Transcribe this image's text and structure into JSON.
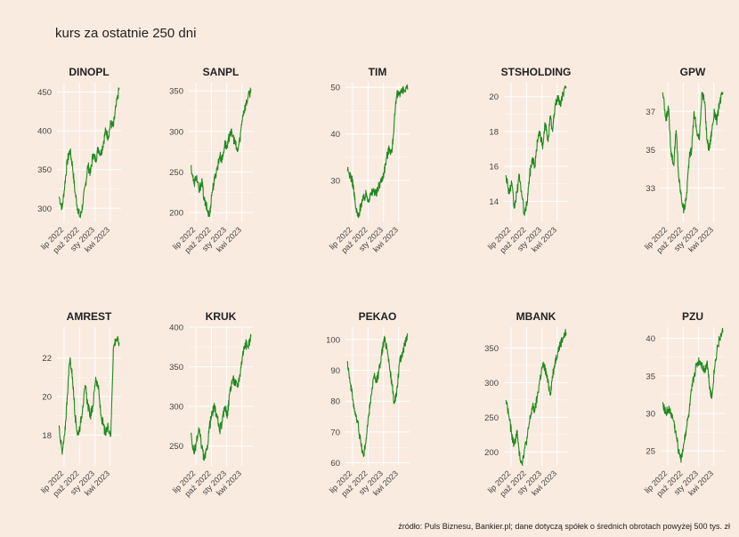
{
  "title": "kurs za ostatnie 250 dni",
  "caption": "źródło: Puls Biznesu, Bankier.pl; dane dotyczą spółek o średnich obrotach powyżej 500 tys. zł",
  "line_color": "#1f8a1f",
  "background_color": "#faebe0",
  "x_tick_labels": [
    "lip 2022",
    "paź 2022",
    "sty 2023",
    "kwi 2023"
  ],
  "chart_data": [
    {
      "type": "line",
      "title": "DINOPL",
      "y_ticks": [
        300,
        350,
        400,
        450
      ],
      "ylim": [
        282,
        462
      ],
      "x": [
        "2022-06-01",
        "2022-06-20",
        "2022-07-05",
        "2022-07-20",
        "2022-08-05",
        "2022-08-20",
        "2022-09-05",
        "2022-09-20",
        "2022-10-05",
        "2022-10-20",
        "2022-11-05",
        "2022-11-20",
        "2022-12-05",
        "2022-12-20",
        "2023-01-05",
        "2023-01-20",
        "2023-02-05",
        "2023-02-20",
        "2023-03-05",
        "2023-03-20",
        "2023-04-05",
        "2023-04-20",
        "2023-05-05",
        "2023-05-25"
      ],
      "y": [
        315,
        300,
        330,
        360,
        375,
        355,
        320,
        300,
        288,
        305,
        330,
        355,
        345,
        370,
        362,
        378,
        370,
        385,
        400,
        392,
        410,
        405,
        430,
        455
      ]
    },
    {
      "type": "line",
      "title": "SANPL",
      "y_ticks": [
        200,
        250,
        300,
        350
      ],
      "ylim": [
        188,
        360
      ],
      "x": [
        "2022-06-01",
        "2022-06-20",
        "2022-07-05",
        "2022-07-20",
        "2022-08-05",
        "2022-08-20",
        "2022-09-05",
        "2022-09-20",
        "2022-10-05",
        "2022-10-20",
        "2022-11-05",
        "2022-11-20",
        "2022-12-05",
        "2022-12-20",
        "2023-01-05",
        "2023-01-20",
        "2023-02-05",
        "2023-02-20",
        "2023-03-05",
        "2023-03-20",
        "2023-04-05",
        "2023-04-20",
        "2023-05-05",
        "2023-05-25"
      ],
      "y": [
        258,
        235,
        245,
        225,
        240,
        215,
        205,
        195,
        225,
        240,
        255,
        270,
        265,
        285,
        280,
        300,
        295,
        285,
        275,
        290,
        320,
        330,
        340,
        352
      ]
    },
    {
      "type": "line",
      "title": "TIM",
      "y_ticks": [
        30,
        40,
        50
      ],
      "ylim": [
        21,
        51
      ],
      "x": [
        "2022-06-01",
        "2022-06-20",
        "2022-07-05",
        "2022-07-20",
        "2022-08-05",
        "2022-08-20",
        "2022-09-05",
        "2022-09-20",
        "2022-10-05",
        "2022-10-20",
        "2022-11-05",
        "2022-11-20",
        "2022-12-05",
        "2022-12-20",
        "2023-01-05",
        "2023-01-20",
        "2023-02-05",
        "2023-02-20",
        "2023-03-05",
        "2023-03-20",
        "2023-04-05",
        "2023-04-20",
        "2023-05-05",
        "2023-05-25"
      ],
      "y": [
        32,
        31,
        29,
        24,
        22,
        25,
        26,
        27,
        26,
        27,
        28,
        27,
        29,
        30,
        32,
        35,
        37,
        36,
        42,
        48,
        49,
        49,
        49.3,
        49.5
      ]
    },
    {
      "type": "line",
      "title": "STSHOLDING",
      "y_ticks": [
        14,
        16,
        18,
        20
      ],
      "ylim": [
        12.8,
        20.8
      ],
      "x": [
        "2022-06-01",
        "2022-06-20",
        "2022-07-05",
        "2022-07-20",
        "2022-08-05",
        "2022-08-20",
        "2022-09-05",
        "2022-09-20",
        "2022-10-05",
        "2022-10-20",
        "2022-11-05",
        "2022-11-20",
        "2022-12-05",
        "2022-12-20",
        "2023-01-05",
        "2023-01-20",
        "2023-02-05",
        "2023-02-20",
        "2023-03-05",
        "2023-03-20",
        "2023-04-05",
        "2023-04-20",
        "2023-05-05",
        "2023-05-25"
      ],
      "y": [
        15.5,
        14.5,
        15.0,
        13.6,
        14.5,
        15.5,
        14.2,
        13.2,
        14.0,
        15.5,
        16.5,
        16.0,
        17.5,
        18.0,
        17.0,
        18.5,
        17.5,
        18.8,
        18.0,
        19.5,
        20.0,
        19.5,
        20.2,
        20.5
      ]
    },
    {
      "type": "line",
      "title": "GPW",
      "y_ticks": [
        33,
        35,
        37
      ],
      "ylim": [
        31.2,
        38.5
      ],
      "x": [
        "2022-06-01",
        "2022-06-20",
        "2022-07-05",
        "2022-07-20",
        "2022-08-05",
        "2022-08-20",
        "2022-09-05",
        "2022-09-20",
        "2022-10-05",
        "2022-10-20",
        "2022-11-05",
        "2022-11-20",
        "2022-12-05",
        "2022-12-20",
        "2023-01-05",
        "2023-01-20",
        "2023-02-05",
        "2023-02-20",
        "2023-03-05",
        "2023-03-20",
        "2023-04-05",
        "2023-04-20",
        "2023-05-05",
        "2023-05-25"
      ],
      "y": [
        38.0,
        36.5,
        37.2,
        35.0,
        34.2,
        36.0,
        33.5,
        32.5,
        31.8,
        32.5,
        34.5,
        35.0,
        37.0,
        36.0,
        35.5,
        38.0,
        37.5,
        35.5,
        35.0,
        36.0,
        37.0,
        36.5,
        37.5,
        38.0
      ]
    },
    {
      "type": "line",
      "title": "AMREST",
      "y_ticks": [
        18,
        20,
        22
      ],
      "ylim": [
        16.4,
        23.6
      ],
      "x": [
        "2022-06-01",
        "2022-06-20",
        "2022-07-05",
        "2022-07-20",
        "2022-08-05",
        "2022-08-20",
        "2022-09-05",
        "2022-09-20",
        "2022-10-05",
        "2022-10-20",
        "2022-11-05",
        "2022-11-20",
        "2022-12-05",
        "2022-12-20",
        "2023-01-05",
        "2023-01-20",
        "2023-02-05",
        "2023-02-20",
        "2023-03-05",
        "2023-03-20",
        "2023-04-05",
        "2023-04-20",
        "2023-05-05",
        "2023-05-25"
      ],
      "y": [
        18.5,
        17.0,
        18.0,
        20.0,
        22.0,
        21.0,
        19.0,
        18.0,
        18.5,
        19.5,
        20.5,
        19.5,
        19.0,
        19.5,
        21.0,
        20.5,
        19.0,
        18.5,
        18.0,
        18.5,
        18.0,
        22.5,
        23.0,
        22.8
      ]
    },
    {
      "type": "line",
      "title": "KRUK",
      "y_ticks": [
        250,
        300,
        350,
        400
      ],
      "ylim": [
        225,
        400
      ],
      "x": [
        "2022-06-01",
        "2022-06-20",
        "2022-07-05",
        "2022-07-20",
        "2022-08-05",
        "2022-08-20",
        "2022-09-05",
        "2022-09-20",
        "2022-10-05",
        "2022-10-20",
        "2022-11-05",
        "2022-11-20",
        "2022-12-05",
        "2022-12-20",
        "2023-01-05",
        "2023-01-20",
        "2023-02-05",
        "2023-02-20",
        "2023-03-05",
        "2023-03-20",
        "2023-04-05",
        "2023-04-20",
        "2023-05-05",
        "2023-05-25"
      ],
      "y": [
        265,
        240,
        255,
        270,
        250,
        232,
        245,
        275,
        290,
        300,
        285,
        270,
        280,
        300,
        290,
        320,
        335,
        330,
        325,
        340,
        365,
        380,
        375,
        388
      ]
    },
    {
      "type": "line",
      "title": "PEKAO",
      "y_ticks": [
        60,
        70,
        80,
        90,
        100
      ],
      "ylim": [
        59,
        104
      ],
      "x": [
        "2022-06-01",
        "2022-06-20",
        "2022-07-05",
        "2022-07-20",
        "2022-08-05",
        "2022-08-20",
        "2022-09-05",
        "2022-09-20",
        "2022-10-05",
        "2022-10-20",
        "2022-11-05",
        "2022-11-20",
        "2022-12-05",
        "2022-12-20",
        "2023-01-05",
        "2023-01-20",
        "2023-02-05",
        "2023-02-20",
        "2023-03-05",
        "2023-03-20",
        "2023-04-05",
        "2023-04-20",
        "2023-05-05",
        "2023-05-25"
      ],
      "y": [
        93,
        85,
        80,
        75,
        72,
        66,
        62,
        68,
        75,
        82,
        88,
        86,
        90,
        95,
        100,
        98,
        92,
        85,
        80,
        82,
        92,
        95,
        98,
        102
      ]
    },
    {
      "type": "line",
      "title": "MBANK",
      "y_ticks": [
        200,
        250,
        300,
        350
      ],
      "ylim": [
        180,
        380
      ],
      "x": [
        "2022-06-01",
        "2022-06-20",
        "2022-07-05",
        "2022-07-20",
        "2022-08-05",
        "2022-08-20",
        "2022-09-05",
        "2022-09-20",
        "2022-10-05",
        "2022-10-20",
        "2022-11-05",
        "2022-11-20",
        "2022-12-05",
        "2022-12-20",
        "2023-01-05",
        "2023-01-20",
        "2023-02-05",
        "2023-02-20",
        "2023-03-05",
        "2023-03-20",
        "2023-04-05",
        "2023-04-20",
        "2023-05-05",
        "2023-05-25"
      ],
      "y": [
        275,
        250,
        225,
        210,
        230,
        195,
        185,
        205,
        220,
        245,
        265,
        260,
        280,
        305,
        325,
        320,
        300,
        285,
        310,
        330,
        345,
        355,
        365,
        372
      ]
    },
    {
      "type": "line",
      "title": "PZU",
      "y_ticks": [
        25,
        30,
        35,
        40
      ],
      "ylim": [
        23,
        41.5
      ],
      "x": [
        "2022-06-01",
        "2022-06-20",
        "2022-07-05",
        "2022-07-20",
        "2022-08-05",
        "2022-08-20",
        "2022-09-05",
        "2022-09-20",
        "2022-10-05",
        "2022-10-20",
        "2022-11-05",
        "2022-11-20",
        "2022-12-05",
        "2022-12-20",
        "2023-01-05",
        "2023-01-20",
        "2023-02-05",
        "2023-02-20",
        "2023-03-05",
        "2023-03-20",
        "2023-04-05",
        "2023-04-20",
        "2023-05-05",
        "2023-05-25"
      ],
      "y": [
        31.5,
        30.0,
        30.5,
        30.0,
        29.0,
        27.0,
        25.0,
        24.0,
        26.0,
        28.0,
        30.0,
        33.0,
        35.0,
        36.5,
        37.0,
        36.5,
        35.5,
        37.0,
        34.0,
        32.0,
        36.0,
        38.5,
        40.0,
        40.8
      ]
    }
  ]
}
